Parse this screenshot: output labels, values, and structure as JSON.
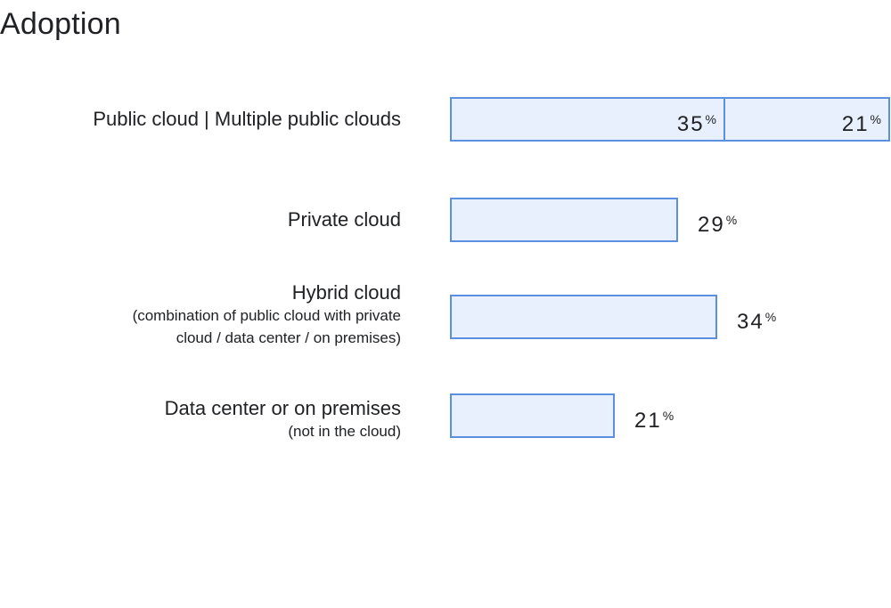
{
  "title": "Adoption",
  "colors": {
    "bar_fill": "#e8f0fe",
    "bar_border": "#5b8fe0",
    "text": "#202124"
  },
  "chart_data": {
    "type": "bar",
    "orientation": "horizontal",
    "title": "Adoption",
    "percent_symbol": "%",
    "max_value": 56,
    "categories": [
      {
        "label": "Public cloud | Multiple public clouds",
        "sublabel": "",
        "segments": [
          35,
          21
        ]
      },
      {
        "label": "Private cloud",
        "sublabel": "",
        "segments": [
          29
        ]
      },
      {
        "label": "Hybrid cloud",
        "sublabel": "(combination of public cloud with private cloud / data center / on premises)",
        "sublabel_lines": [
          "(combination of public cloud with private",
          "cloud / data center / on premises)"
        ],
        "segments": [
          34
        ]
      },
      {
        "label": "Data center or on premises",
        "sublabel": "(not in the cloud)",
        "sublabel_lines": [
          "(not in the cloud)"
        ],
        "segments": [
          21
        ]
      }
    ]
  }
}
